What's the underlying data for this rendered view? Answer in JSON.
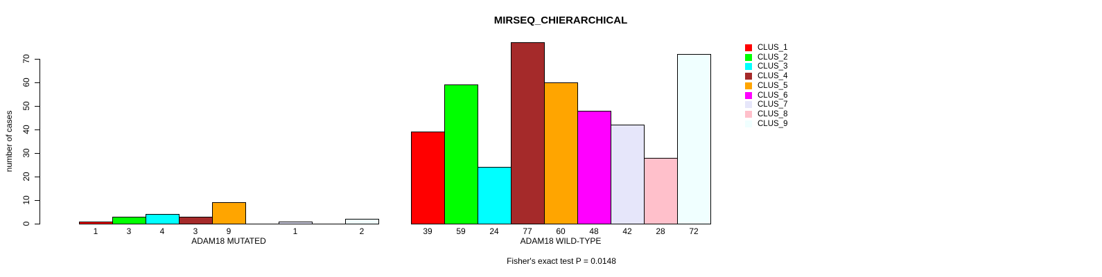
{
  "chart_data": {
    "type": "bar",
    "title": "MIRSEQ_CHIERARCHICAL",
    "ylabel": "number of cases",
    "footnote": "Fisher's exact test P = 0.0148",
    "ylim": [
      0,
      70
    ],
    "yticks": [
      0,
      10,
      20,
      30,
      40,
      50,
      60,
      70
    ],
    "grid": false,
    "legend_position": "right",
    "clusters": [
      {
        "name": "CLUS_1",
        "color": "#FF0000"
      },
      {
        "name": "CLUS_2",
        "color": "#00FF00"
      },
      {
        "name": "CLUS_3",
        "color": "#00FFFF"
      },
      {
        "name": "CLUS_4",
        "color": "#A52A2A"
      },
      {
        "name": "CLUS_5",
        "color": "#FFA500"
      },
      {
        "name": "CLUS_6",
        "color": "#FF00FF"
      },
      {
        "name": "CLUS_7",
        "color": "#E6E6FA"
      },
      {
        "name": "CLUS_8",
        "color": "#FFC0CB"
      },
      {
        "name": "CLUS_9",
        "color": "#F0FFFF"
      }
    ],
    "groups": [
      {
        "label": "ADAM18 MUTATED",
        "values": [
          1,
          3,
          4,
          3,
          9,
          0,
          1,
          0,
          2
        ]
      },
      {
        "label": "ADAM18 WILD-TYPE",
        "values": [
          39,
          59,
          24,
          77,
          60,
          48,
          42,
          28,
          72
        ]
      }
    ]
  }
}
